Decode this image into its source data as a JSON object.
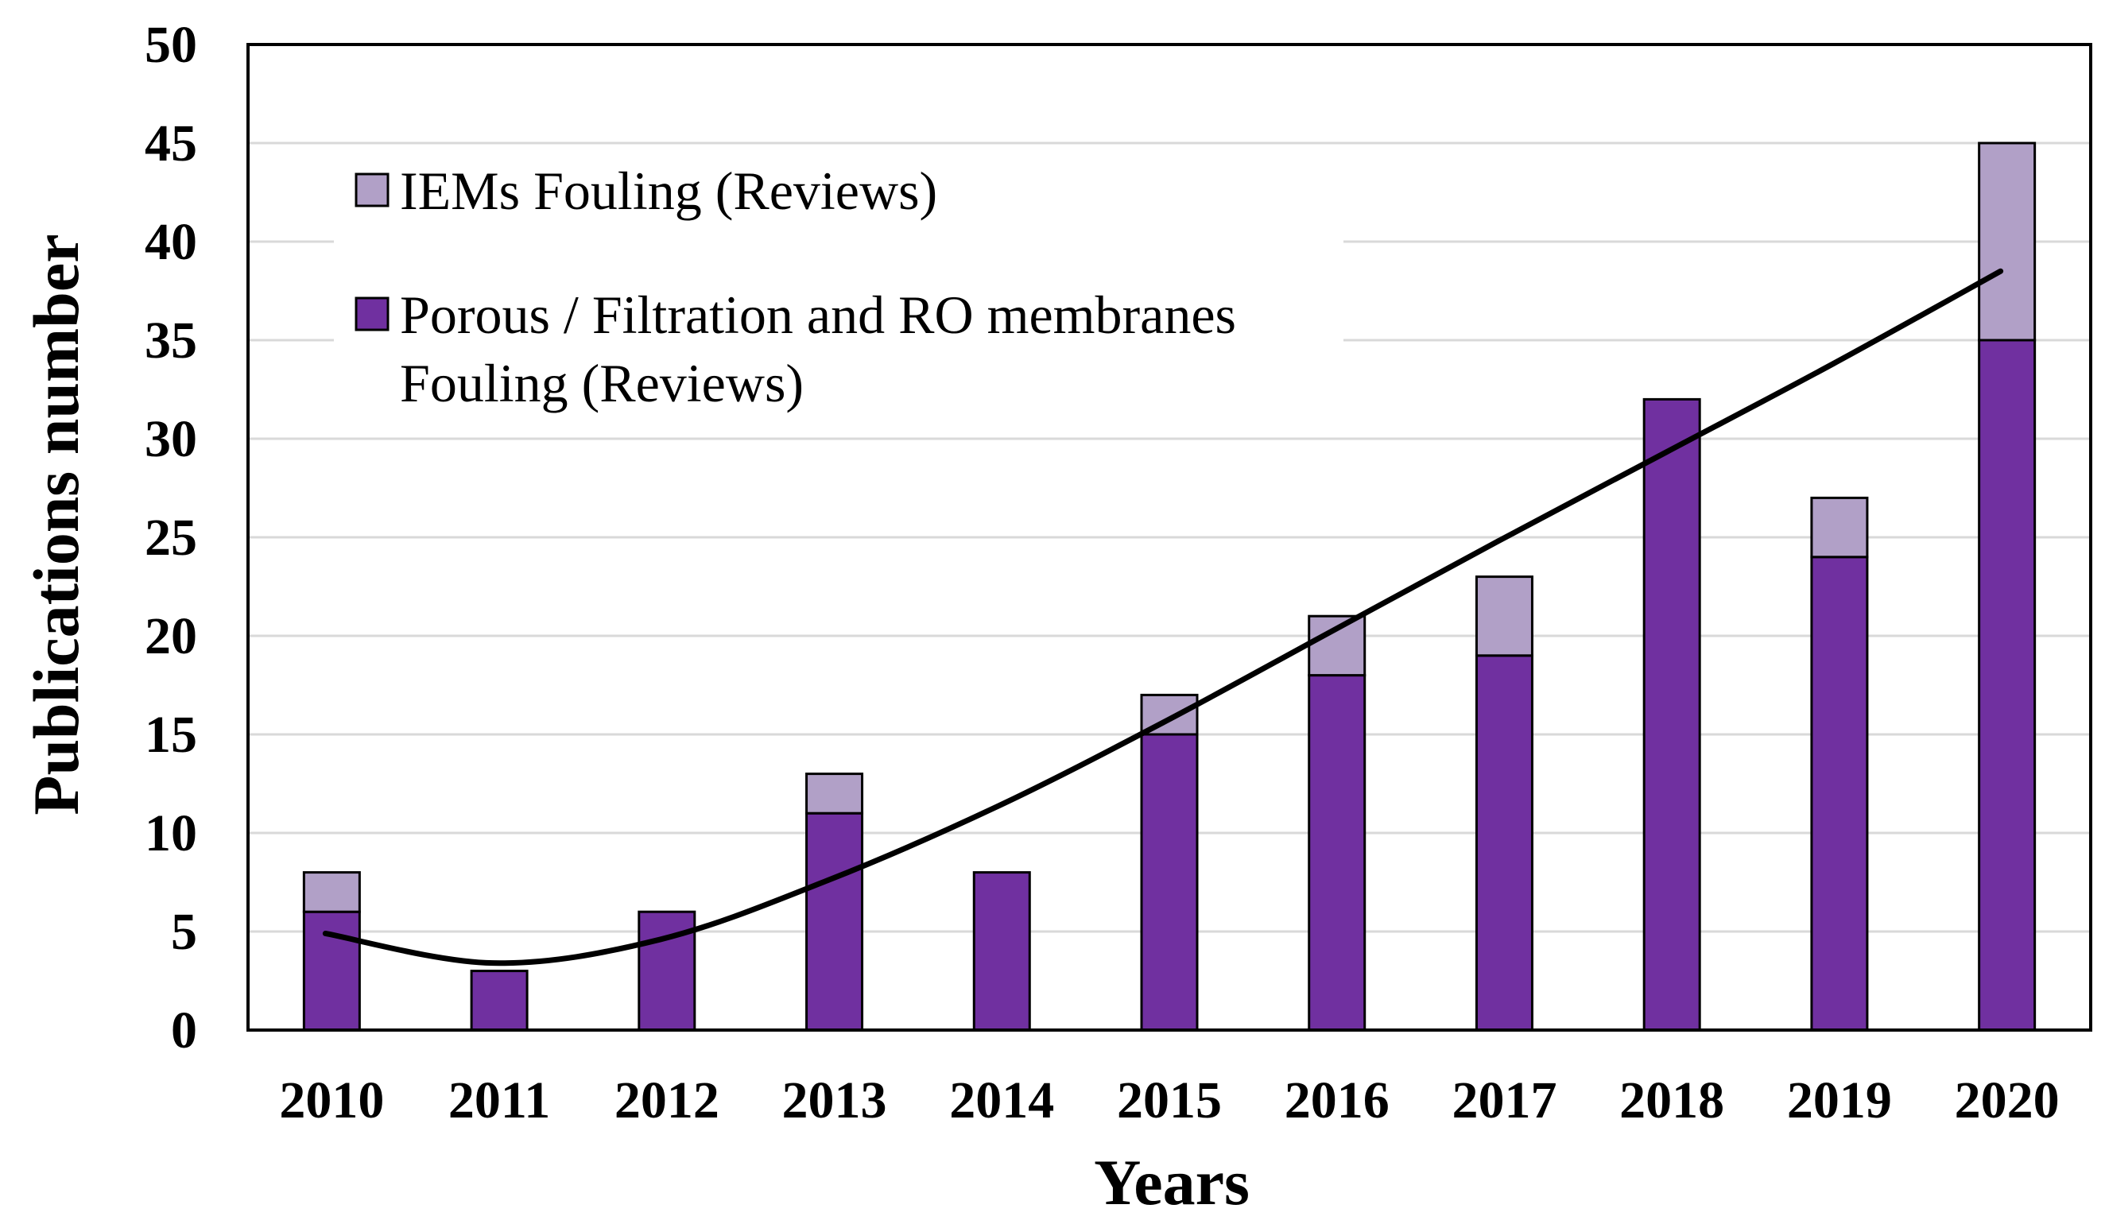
{
  "chart_data": {
    "type": "bar",
    "stacked": true,
    "title": "",
    "xlabel": "Years",
    "ylabel": "Publications number",
    "categories": [
      "2010",
      "2011",
      "2012",
      "2013",
      "2014",
      "2015",
      "2016",
      "2017",
      "2018",
      "2019",
      "2020"
    ],
    "ylim": [
      0,
      50
    ],
    "yticks": [
      0,
      5,
      10,
      15,
      20,
      25,
      30,
      35,
      40,
      45,
      50
    ],
    "grid": true,
    "legend_position": "top-left",
    "series": [
      {
        "name": "Porous / Filtration and RO membranes Fouling (Reviews)",
        "legend_lines": [
          "Porous / Filtration and RO membranes",
          "Fouling (Reviews)"
        ],
        "color": "#7030a0",
        "values": [
          6,
          3,
          6,
          11,
          8,
          15,
          18,
          19,
          32,
          24,
          35
        ]
      },
      {
        "name": "IEMs Fouling (Reviews)",
        "legend_lines": [
          "IEMs Fouling (Reviews)"
        ],
        "color": "#b1a0c7",
        "values": [
          2,
          0,
          0,
          2,
          0,
          2,
          3,
          4,
          0,
          3,
          10
        ]
      }
    ],
    "trendline": {
      "type": "polynomial",
      "color": "#000000",
      "x": [
        "2010",
        "2011",
        "2012",
        "2013",
        "2014",
        "2015",
        "2016",
        "2017",
        "2018",
        "2019",
        "2020"
      ],
      "values": [
        4.9,
        3.4,
        4.6,
        7.6,
        11.3,
        15.6,
        20.2,
        24.8,
        29.3,
        33.8,
        38.5
      ]
    }
  }
}
